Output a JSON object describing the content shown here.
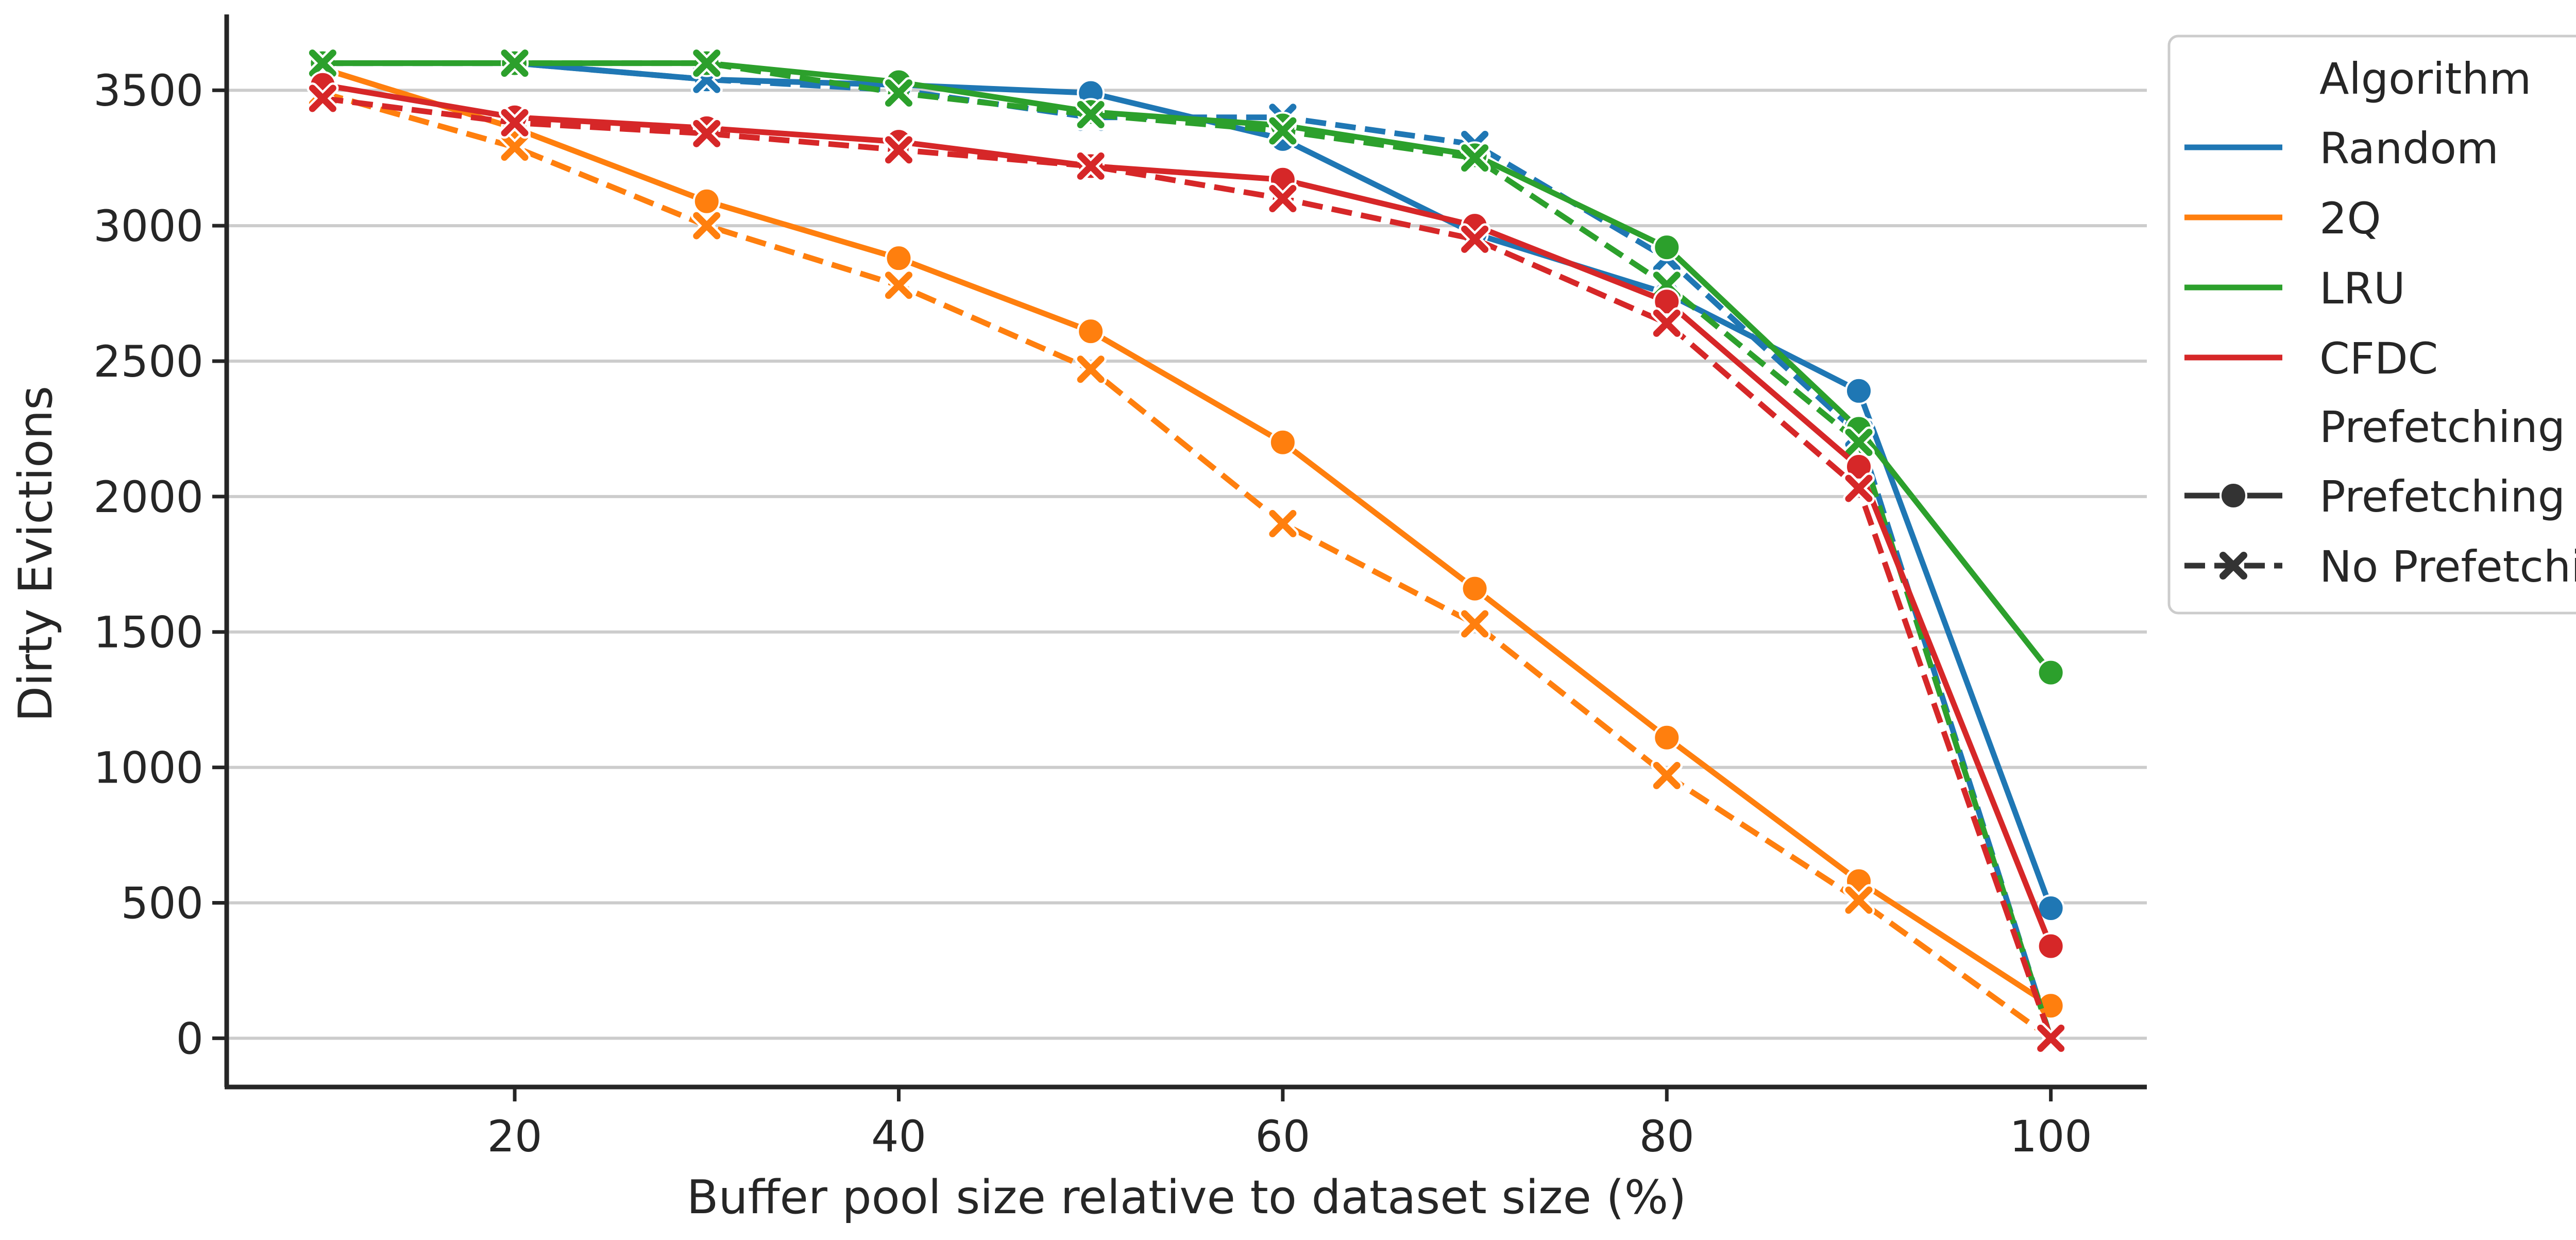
{
  "chart_data": {
    "type": "line",
    "title": "",
    "xlabel": "Buffer pool size relative to dataset size (%)",
    "ylabel": "Dirty Evictions",
    "xlim": [
      5,
      105
    ],
    "ylim": [
      -180,
      3780
    ],
    "xticks": [
      20,
      40,
      60,
      80,
      100
    ],
    "yticks": [
      0,
      500,
      1000,
      1500,
      2000,
      2500,
      3000,
      3500
    ],
    "grid": "horizontal",
    "legend_position": "outside-right",
    "x": [
      10,
      20,
      30,
      40,
      50,
      60,
      70,
      80,
      90,
      100
    ],
    "legend": {
      "hue_title": "Algorithm",
      "style_title": "Prefetching",
      "style_entries": [
        "Prefetching",
        "No Prefetching"
      ]
    },
    "series": [
      {
        "name": "Random",
        "algorithm": "Random",
        "prefetching": "Prefetching",
        "color": "#1f77b4",
        "dashed": false,
        "marker": "circle",
        "values": [
          3600,
          3600,
          3540,
          3520,
          3490,
          3320,
          2970,
          2750,
          2390,
          480
        ]
      },
      {
        "name": "Random",
        "algorithm": "Random",
        "prefetching": "No Prefetching",
        "color": "#1f77b4",
        "dashed": true,
        "marker": "x",
        "values": [
          3600,
          3600,
          3540,
          3500,
          3400,
          3400,
          3300,
          2880,
          2230,
          0
        ]
      },
      {
        "name": "2Q",
        "algorithm": "2Q",
        "prefetching": "Prefetching",
        "color": "#ff7f0e",
        "dashed": false,
        "marker": "circle",
        "values": [
          3580,
          3360,
          3090,
          2880,
          2610,
          2200,
          1660,
          1110,
          580,
          120
        ]
      },
      {
        "name": "2Q",
        "algorithm": "2Q",
        "prefetching": "No Prefetching",
        "color": "#ff7f0e",
        "dashed": true,
        "marker": "x",
        "values": [
          3490,
          3290,
          3000,
          2780,
          2470,
          1900,
          1530,
          970,
          510,
          0
        ]
      },
      {
        "name": "LRU",
        "algorithm": "LRU",
        "prefetching": "Prefetching",
        "color": "#2ca02c",
        "dashed": false,
        "marker": "circle",
        "values": [
          3600,
          3600,
          3600,
          3530,
          3420,
          3370,
          3260,
          2920,
          2250,
          1350
        ]
      },
      {
        "name": "LRU",
        "algorithm": "LRU",
        "prefetching": "No Prefetching",
        "color": "#2ca02c",
        "dashed": true,
        "marker": "x",
        "values": [
          3600,
          3600,
          3600,
          3490,
          3410,
          3350,
          3250,
          2780,
          2200,
          0
        ]
      },
      {
        "name": "CFDC",
        "algorithm": "CFDC",
        "prefetching": "Prefetching",
        "color": "#d62728",
        "dashed": false,
        "marker": "circle",
        "values": [
          3520,
          3400,
          3360,
          3310,
          3220,
          3170,
          3000,
          2720,
          2110,
          340
        ]
      },
      {
        "name": "CFDC",
        "algorithm": "CFDC",
        "prefetching": "No Prefetching",
        "color": "#d62728",
        "dashed": true,
        "marker": "x",
        "values": [
          3470,
          3380,
          3340,
          3280,
          3220,
          3100,
          2950,
          2640,
          2030,
          0
        ]
      }
    ]
  }
}
